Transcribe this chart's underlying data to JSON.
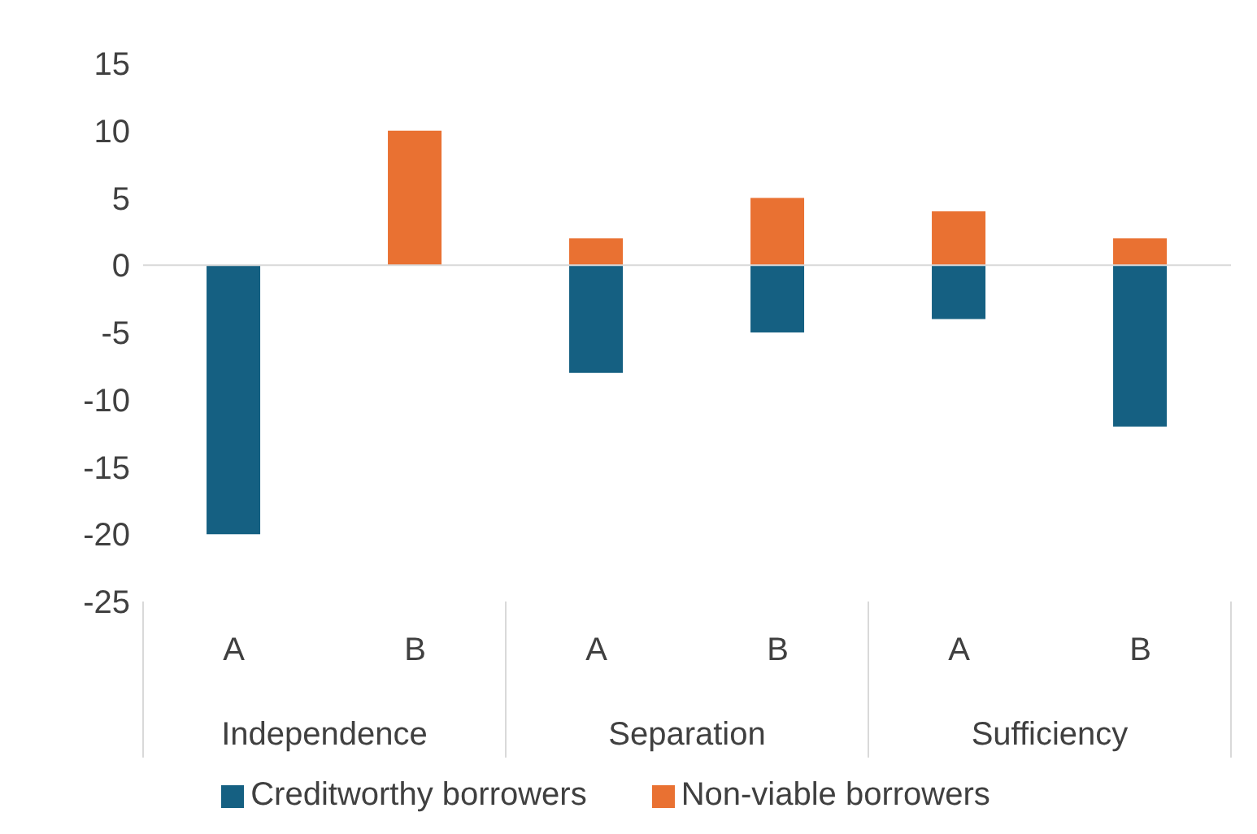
{
  "chart_data": {
    "type": "bar",
    "stacked": true,
    "categories": [
      "A",
      "B",
      "A",
      "B",
      "A",
      "B"
    ],
    "annotations": [
      "Independence",
      "Separation",
      "Sufficiency"
    ],
    "series": [
      {
        "name": "Creditworthy borrowers",
        "color": "#156082",
        "values": [
          -20,
          0,
          -8,
          -5,
          -4,
          -12
        ]
      },
      {
        "name": "Non-viable borrowers",
        "color": "#e97132",
        "values": [
          0,
          10,
          2,
          5,
          4,
          2
        ]
      }
    ],
    "ref_lines": [
      {
        "axis": "y",
        "value": 0,
        "color": "#d9d9d9"
      }
    ],
    "ylim": [
      -25,
      15
    ],
    "yticks": [
      -25,
      -20,
      -15,
      -10,
      -5,
      0,
      5,
      10,
      15
    ],
    "legend": "bottom"
  }
}
